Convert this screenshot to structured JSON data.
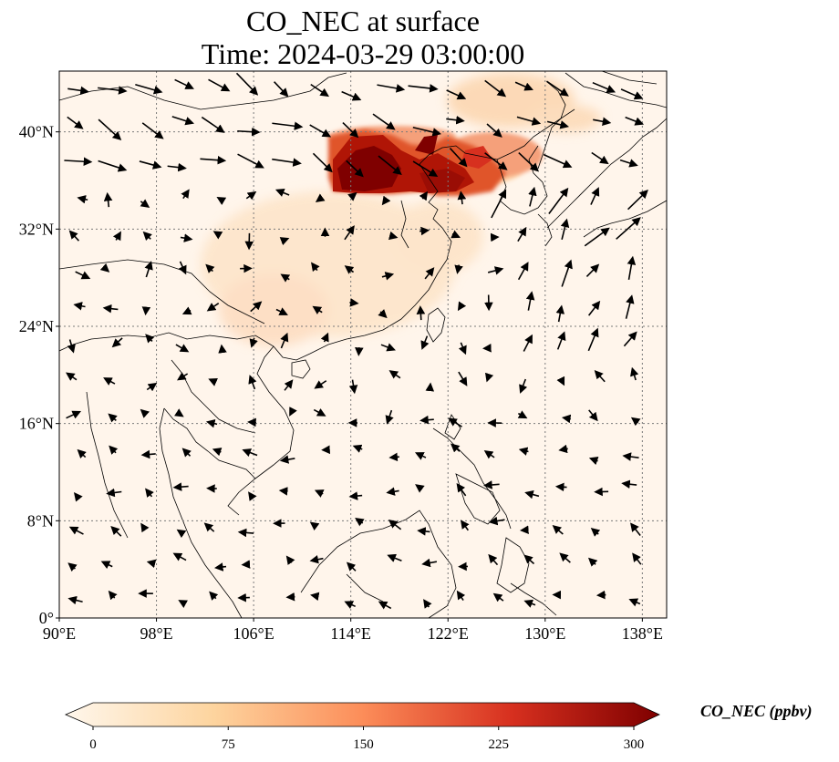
{
  "title": {
    "line1": "CO_NEC at surface",
    "line2": "Time: 2024-03-29 03:00:00"
  },
  "map": {
    "extent": {
      "lon_min": 90,
      "lon_max": 140,
      "lat_min": 0,
      "lat_max": 45
    },
    "x_ticks": [
      {
        "lon": 90,
        "label": "90°E"
      },
      {
        "lon": 98,
        "label": "98°E"
      },
      {
        "lon": 106,
        "label": "106°E"
      },
      {
        "lon": 114,
        "label": "114°E"
      },
      {
        "lon": 122,
        "label": "122°E"
      },
      {
        "lon": 130,
        "label": "130°E"
      },
      {
        "lon": 138,
        "label": "138°E"
      }
    ],
    "y_ticks": [
      {
        "lat": 0,
        "label": "0°"
      },
      {
        "lat": 8,
        "label": "8°N"
      },
      {
        "lat": 16,
        "label": "16°N"
      },
      {
        "lat": 24,
        "label": "24°N"
      },
      {
        "lat": 32,
        "label": "32°N"
      },
      {
        "lat": 40,
        "label": "40°N"
      }
    ],
    "gridlines": true,
    "background_color": "#fff5eb",
    "plume_colors": [
      "#fdd0a2",
      "#f5a07a",
      "#e0542c",
      "#b01506",
      "#7f0000"
    ]
  },
  "colorbar": {
    "title": "CO_NEC (ppbv)",
    "min": 0,
    "max": 300,
    "ticks": [
      {
        "value": 0,
        "label": "0"
      },
      {
        "value": 75,
        "label": "75"
      },
      {
        "value": 150,
        "label": "150"
      },
      {
        "value": 225,
        "label": "225"
      },
      {
        "value": 300,
        "label": "300"
      }
    ],
    "colormap": "OrRd",
    "extend": "both"
  }
}
